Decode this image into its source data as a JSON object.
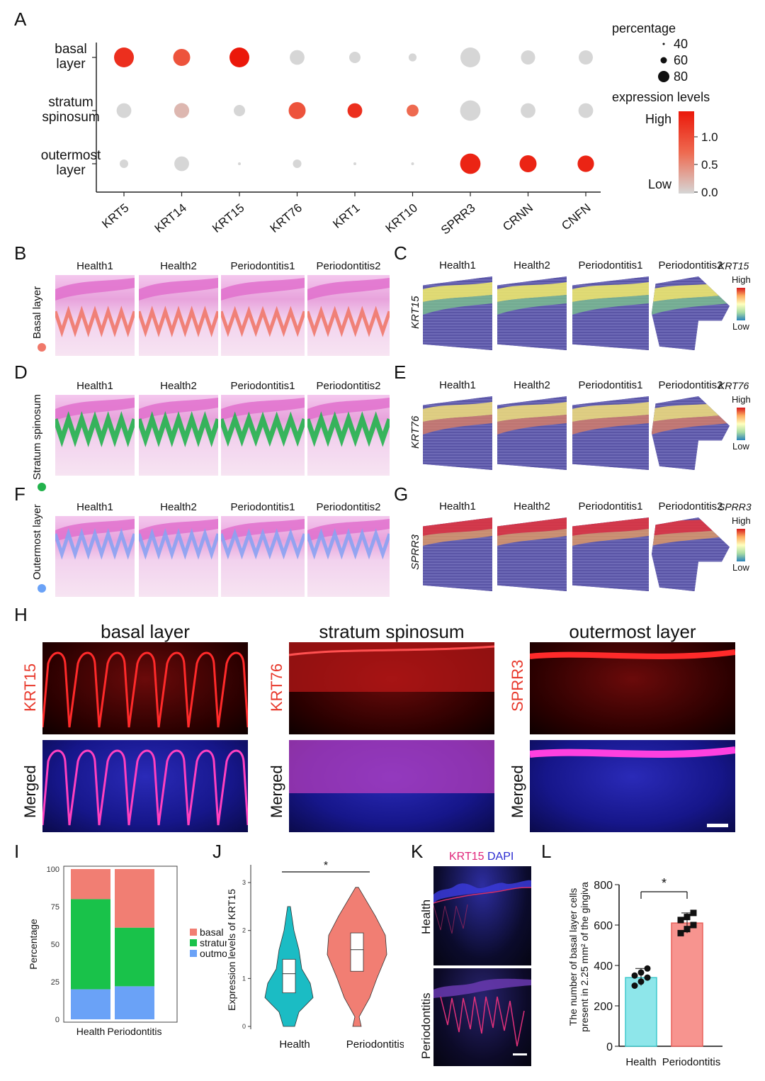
{
  "chart_data": [
    {
      "panel": "A",
      "type": "dot",
      "rows": [
        "basal layer",
        "stratum spinosum",
        "outermost layer"
      ],
      "genes": [
        "KRT5",
        "KRT14",
        "KRT15",
        "KRT76",
        "KRT1",
        "KRT10",
        "SPRR3",
        "CRNN",
        "CNFN"
      ],
      "percentage": [
        [
          80,
          70,
          80,
          62,
          50,
          38,
          80,
          60,
          60
        ],
        [
          62,
          63,
          50,
          70,
          62,
          52,
          82,
          62,
          62
        ],
        [
          40,
          62,
          18,
          40,
          18,
          10,
          82,
          70,
          68
        ]
      ],
      "expression": [
        [
          1.2,
          0.9,
          1.4,
          0.0,
          0.0,
          0.0,
          0.0,
          0.0,
          0.0
        ],
        [
          0.0,
          0.2,
          0.0,
          0.9,
          1.2,
          0.7,
          0.0,
          0.0,
          0.0
        ],
        [
          0.0,
          0.0,
          0.0,
          0.0,
          0.0,
          0.0,
          1.3,
          1.3,
          1.3
        ]
      ],
      "size_legend": {
        "title": "percentage",
        "labels": [
          "40",
          "60",
          "80"
        ]
      },
      "color_legend": {
        "title": "expression levels",
        "high": "High",
        "low": "Low",
        "ticks": [
          "1.0",
          "0.5",
          "0.0"
        ]
      }
    },
    {
      "panel": "I",
      "type": "stacked-bar",
      "categories": [
        "Health",
        "Periodontitis"
      ],
      "series": [
        {
          "name": "basal",
          "values": [
            20,
            39
          ],
          "color": "#f17e73"
        },
        {
          "name": "stratum",
          "values": [
            60,
            39
          ],
          "color": "#19c24a"
        },
        {
          "name": "outmost",
          "values": [
            20,
            22
          ],
          "color": "#6aa2f7"
        }
      ],
      "ylabel": "Percentage",
      "yticks": [
        "0",
        "25",
        "50",
        "75",
        "100"
      ]
    },
    {
      "panel": "J",
      "type": "violin",
      "categories": [
        "Health",
        "Periodontitis"
      ],
      "medians": [
        1.1,
        1.6
      ],
      "q1": [
        0.7,
        1.15
      ],
      "q3": [
        1.4,
        1.95
      ],
      "colors": [
        "#1bbcc4",
        "#f17e73"
      ],
      "ylabel": "Expression levels of KRT15",
      "yticks": [
        "0",
        "1",
        "2",
        "3"
      ],
      "ylim": [
        0,
        3.4
      ],
      "significance": "*"
    },
    {
      "panel": "L",
      "type": "bar",
      "categories": [
        "Health",
        "Periodontitis"
      ],
      "values": [
        340,
        610
      ],
      "points": [
        [
          300,
          320,
          340,
          350,
          365,
          385
        ],
        [
          560,
          580,
          600,
          625,
          640,
          660
        ]
      ],
      "colors": [
        "#8ee6ea",
        "#f7948f"
      ],
      "ylabel": "The number of basal layer cells present in 2.25 mm² of the gingiva",
      "yticks": [
        "0",
        "200",
        "400",
        "600",
        "800"
      ],
      "ylim": [
        0,
        800
      ],
      "significance": "*"
    }
  ],
  "panels": {
    "A": "A",
    "B": "B",
    "C": "C",
    "D": "D",
    "E": "E",
    "F": "F",
    "G": "G",
    "H": "H",
    "I": "I",
    "J": "J",
    "K": "K",
    "L": "L"
  },
  "samples": [
    "Health1",
    "Health2",
    "Periodontitis1",
    "Periodontitis2"
  ],
  "he_rows": [
    {
      "label": "Basal layer",
      "dot_color": "#f0786a"
    },
    {
      "label": "Stratum spinosum",
      "dot_color": "#22b24c"
    },
    {
      "label": "Outermost layer",
      "dot_color": "#6aa2f7"
    }
  ],
  "spatial_rows": [
    {
      "gene": "KRT15",
      "high": "High",
      "low": "Low"
    },
    {
      "gene": "KRT76",
      "high": "High",
      "low": "Low"
    },
    {
      "gene": "SPRR3",
      "high": "High",
      "low": "Low"
    }
  ],
  "if_columns": [
    {
      "title": "basal layer",
      "marker": "KRT15",
      "merged": "Merged"
    },
    {
      "title": "stratum spinosum",
      "marker": "KRT76",
      "merged": "Merged"
    },
    {
      "title": "outermost layer",
      "marker": "SPRR3",
      "merged": "Merged"
    }
  ],
  "panel_k": {
    "marker": "KRT15",
    "stain": "DAPI",
    "rows": [
      "Health",
      "Periodontitis"
    ],
    "marker_color": "#e0257a",
    "stain_color": "#2a2ad0"
  }
}
